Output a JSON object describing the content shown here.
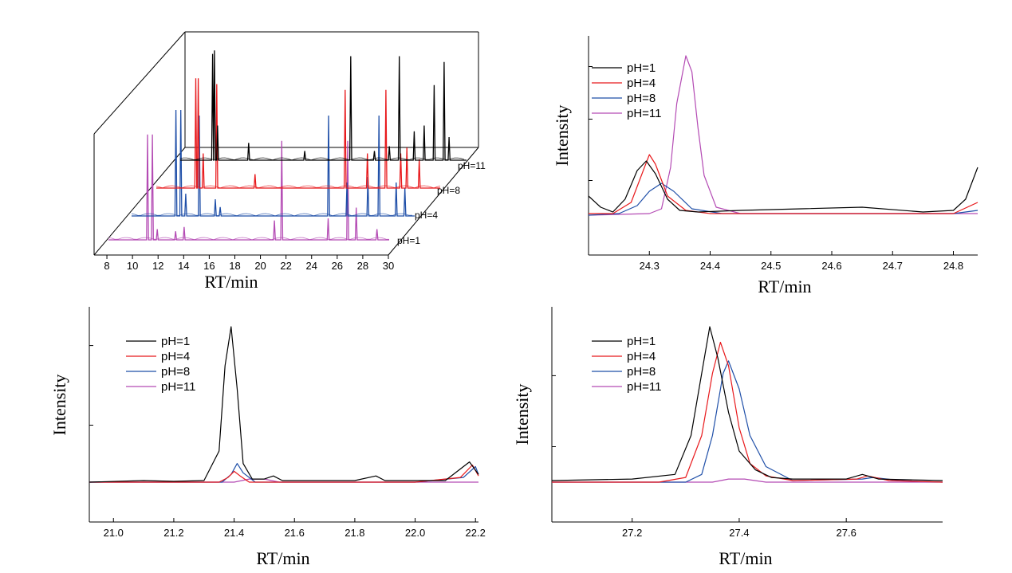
{
  "colors": {
    "pH1": "#000000",
    "pH4": "#e8191c",
    "pH8": "#1f4fa8",
    "pH11": "#b44bb4"
  },
  "chart_data": [
    {
      "id": "overview-3d",
      "type": "line",
      "subtype": "stacked-3d-chromatogram",
      "xlabel": "RT/min",
      "ylabel": "",
      "xlim": [
        7,
        30
      ],
      "xticks": [
        8,
        10,
        12,
        14,
        16,
        18,
        20,
        22,
        24,
        26,
        28,
        30
      ],
      "series_labels": [
        "pH=1",
        "pH=4",
        "pH=8",
        "pH=11"
      ],
      "series": [
        {
          "name": "pH=1",
          "color": "#b44bb4",
          "peaks": [
            [
              10.2,
              0.98
            ],
            [
              10.6,
              0.98
            ],
            [
              11.0,
              0.1
            ],
            [
              12.5,
              0.08
            ],
            [
              13.2,
              0.12
            ],
            [
              20.6,
              0.18
            ],
            [
              21.2,
              0.92
            ],
            [
              25.0,
              0.2
            ],
            [
              26.6,
              0.92
            ],
            [
              27.3,
              0.3
            ],
            [
              29.0,
              0.1
            ]
          ]
        },
        {
          "name": "pH=4",
          "color": "#1f4fa8",
          "peaks": [
            [
              10.6,
              0.95
            ],
            [
              11.0,
              0.95
            ],
            [
              11.4,
              0.2
            ],
            [
              12.5,
              0.9
            ],
            [
              13.8,
              0.15
            ],
            [
              14.2,
              0.08
            ],
            [
              23.0,
              0.9
            ],
            [
              24.5,
              0.3
            ],
            [
              26.2,
              0.35
            ],
            [
              27.1,
              0.9
            ],
            [
              28.5,
              0.3
            ],
            [
              29.2,
              0.25
            ]
          ]
        },
        {
          "name": "pH=8",
          "color": "#e8191c",
          "peaks": [
            [
              10.2,
              0.95
            ],
            [
              10.4,
              0.95
            ],
            [
              10.8,
              0.3
            ],
            [
              11.9,
              0.9
            ],
            [
              15.0,
              0.12
            ],
            [
              22.3,
              0.85
            ],
            [
              24.1,
              0.3
            ],
            [
              25.6,
              0.85
            ],
            [
              26.8,
              0.3
            ],
            [
              27.3,
              0.35
            ],
            [
              28.3,
              0.25
            ]
          ]
        },
        {
          "name": "pH=11",
          "color": "#000000",
          "peaks": [
            [
              9.6,
              0.92
            ],
            [
              9.75,
              0.95
            ],
            [
              10.0,
              0.3
            ],
            [
              12.5,
              0.15
            ],
            [
              17.0,
              0.08
            ],
            [
              20.7,
              0.9
            ],
            [
              22.6,
              0.08
            ],
            [
              23.8,
              0.12
            ],
            [
              24.6,
              0.9
            ],
            [
              25.8,
              0.25
            ],
            [
              26.6,
              0.3
            ],
            [
              27.4,
              0.65
            ],
            [
              28.2,
              0.85
            ],
            [
              28.6,
              0.2
            ]
          ]
        }
      ]
    },
    {
      "id": "zoom-24",
      "type": "line",
      "xlabel": "RT/min",
      "ylabel": "Intensity",
      "xlim": [
        24.2,
        24.84
      ],
      "xticks": [
        24.3,
        24.4,
        24.5,
        24.6,
        24.7,
        24.8
      ],
      "legend": [
        "pH=1",
        "pH=4",
        "pH=8",
        "pH=11"
      ],
      "series": [
        {
          "name": "pH=1",
          "color": "#000000",
          "x": [
            24.2,
            24.22,
            24.24,
            24.26,
            24.28,
            24.295,
            24.31,
            24.33,
            24.35,
            24.38,
            24.45,
            24.55,
            24.65,
            24.75,
            24.8,
            24.82,
            24.84
          ],
          "y": [
            0.12,
            0.05,
            0.02,
            0.1,
            0.28,
            0.34,
            0.26,
            0.1,
            0.03,
            0.02,
            0.03,
            0.04,
            0.05,
            0.02,
            0.03,
            0.1,
            0.3
          ]
        },
        {
          "name": "pH=4",
          "color": "#e8191c",
          "x": [
            24.2,
            24.24,
            24.27,
            24.29,
            24.3,
            24.31,
            24.33,
            24.36,
            24.4,
            24.5,
            24.6,
            24.7,
            24.8,
            24.84
          ],
          "y": [
            0.01,
            0.01,
            0.08,
            0.28,
            0.38,
            0.32,
            0.12,
            0.03,
            0.01,
            0.01,
            0.01,
            0.01,
            0.01,
            0.08
          ]
        },
        {
          "name": "pH=8",
          "color": "#1f4fa8",
          "x": [
            24.2,
            24.25,
            24.28,
            24.3,
            24.32,
            24.34,
            24.37,
            24.42,
            24.5,
            24.6,
            24.7,
            24.8,
            24.84
          ],
          "y": [
            0.0,
            0.01,
            0.06,
            0.15,
            0.2,
            0.15,
            0.04,
            0.01,
            0.01,
            0.01,
            0.01,
            0.01,
            0.03
          ]
        },
        {
          "name": "pH=11",
          "color": "#b44bb4",
          "x": [
            24.2,
            24.3,
            24.32,
            24.335,
            24.345,
            24.36,
            24.37,
            24.38,
            24.39,
            24.41,
            24.45,
            24.55,
            24.65,
            24.75,
            24.84
          ],
          "y": [
            0.0,
            0.01,
            0.04,
            0.3,
            0.7,
            1.0,
            0.9,
            0.55,
            0.25,
            0.05,
            0.01,
            0.01,
            0.01,
            0.01,
            0.01
          ]
        }
      ]
    },
    {
      "id": "zoom-21",
      "type": "line",
      "xlabel": "RT/min",
      "ylabel": "Intensity",
      "xlim": [
        20.92,
        22.21
      ],
      "xticks": [
        21.0,
        21.2,
        21.4,
        21.6,
        21.8,
        22.0,
        22.2
      ],
      "legend": [
        "pH=1",
        "pH=4",
        "pH=8",
        "pH=11"
      ],
      "series": [
        {
          "name": "pH=1",
          "color": "#000000",
          "x": [
            20.92,
            21.1,
            21.2,
            21.3,
            21.35,
            21.37,
            21.39,
            21.41,
            21.43,
            21.46,
            21.5,
            21.53,
            21.56,
            21.8,
            21.87,
            21.9,
            22.1,
            22.16,
            22.18,
            22.21
          ],
          "y": [
            0,
            0.01,
            0.005,
            0.01,
            0.2,
            0.75,
            1.0,
            0.6,
            0.12,
            0.02,
            0.02,
            0.04,
            0.01,
            0.01,
            0.04,
            0.01,
            0.01,
            0.1,
            0.13,
            0.05
          ]
        },
        {
          "name": "pH=4",
          "color": "#e8191c",
          "x": [
            20.92,
            21.35,
            21.38,
            21.4,
            21.42,
            21.45,
            21.6,
            22.0,
            22.15,
            22.19,
            22.21
          ],
          "y": [
            0,
            0.0,
            0.03,
            0.07,
            0.04,
            0.0,
            0.0,
            0.0,
            0.03,
            0.11,
            0.04
          ]
        },
        {
          "name": "pH=8",
          "color": "#1f4fa8",
          "x": [
            20.92,
            21.36,
            21.39,
            21.41,
            21.43,
            21.47,
            21.6,
            22.0,
            22.16,
            22.2,
            22.21
          ],
          "y": [
            0,
            0.0,
            0.05,
            0.12,
            0.06,
            0.0,
            0.0,
            0.0,
            0.03,
            0.1,
            0.05
          ]
        },
        {
          "name": "pH=11",
          "color": "#b44bb4",
          "x": [
            20.92,
            21.4,
            21.45,
            21.5,
            21.55,
            22.0,
            22.21
          ],
          "y": [
            0,
            0.0,
            0.02,
            0.02,
            0.0,
            0.0,
            0.0
          ]
        }
      ]
    },
    {
      "id": "zoom-27",
      "type": "line",
      "xlabel": "RT/min",
      "ylabel": "Intensity",
      "xlim": [
        27.05,
        27.78
      ],
      "xticks": [
        27.2,
        27.4,
        27.6
      ],
      "legend": [
        "pH=1",
        "pH=4",
        "pH=8",
        "pH=11"
      ],
      "series": [
        {
          "name": "pH=1",
          "color": "#000000",
          "x": [
            27.05,
            27.2,
            27.28,
            27.31,
            27.33,
            27.345,
            27.36,
            27.38,
            27.4,
            27.43,
            27.46,
            27.5,
            27.6,
            27.63,
            27.66,
            27.78
          ],
          "y": [
            0.01,
            0.02,
            0.05,
            0.3,
            0.7,
            1.0,
            0.8,
            0.45,
            0.2,
            0.08,
            0.03,
            0.02,
            0.02,
            0.05,
            0.02,
            0.01
          ]
        },
        {
          "name": "pH=4",
          "color": "#e8191c",
          "x": [
            27.05,
            27.25,
            27.3,
            27.33,
            27.35,
            27.365,
            27.38,
            27.4,
            27.42,
            27.45,
            27.5,
            27.62,
            27.64,
            27.68,
            27.78
          ],
          "y": [
            0.0,
            0.0,
            0.03,
            0.3,
            0.7,
            0.9,
            0.75,
            0.35,
            0.12,
            0.04,
            0.01,
            0.02,
            0.04,
            0.01,
            0.0
          ]
        },
        {
          "name": "pH=8",
          "color": "#1f4fa8",
          "x": [
            27.05,
            27.3,
            27.33,
            27.35,
            27.37,
            27.38,
            27.4,
            27.42,
            27.45,
            27.5,
            27.63,
            27.65,
            27.7,
            27.78
          ],
          "y": [
            0.0,
            0.0,
            0.05,
            0.3,
            0.7,
            0.78,
            0.6,
            0.3,
            0.1,
            0.01,
            0.02,
            0.03,
            0.01,
            0.0
          ]
        },
        {
          "name": "pH=11",
          "color": "#b44bb4",
          "x": [
            27.05,
            27.35,
            27.38,
            27.41,
            27.45,
            27.78
          ],
          "y": [
            0.0,
            0.0,
            0.02,
            0.02,
            0.0,
            0.0
          ]
        }
      ]
    }
  ]
}
